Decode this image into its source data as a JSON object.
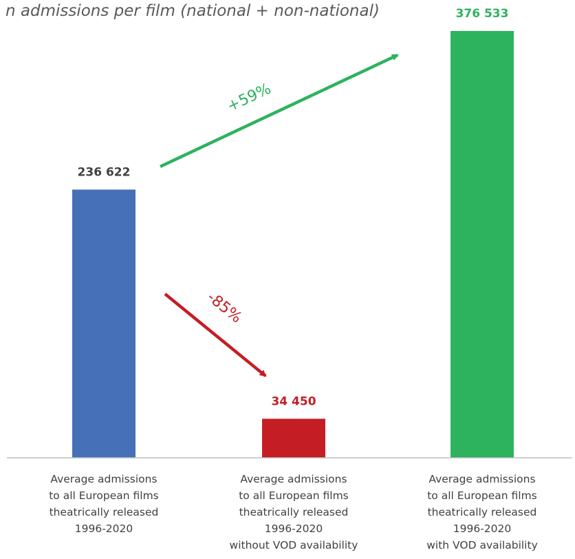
{
  "chart_data": {
    "type": "bar",
    "title": "n admissions per film (national + non-national)",
    "categories": [
      [
        "Average admissions",
        "to all European films",
        "theatrically released",
        "1996-2020"
      ],
      [
        "Average admissions",
        "to all European films",
        "theatrically released",
        "1996-2020",
        "without VOD availability"
      ],
      [
        "Average admissions",
        "to all European films",
        "theatrically released",
        "1996-2020",
        "with VOD availability"
      ]
    ],
    "values": [
      236622,
      34450,
      376533
    ],
    "value_labels": [
      "236 622",
      "34 450",
      "376 533"
    ],
    "colors": [
      "#4670b8",
      "#c41e24",
      "#2db35d"
    ],
    "ylim": [
      0,
      376533
    ],
    "grid": false,
    "legend": "none",
    "annotations": [
      {
        "text": "+59%",
        "from": 0,
        "to": 2,
        "color": "#2db35d"
      },
      {
        "text": "-85%",
        "from": 0,
        "to": 1,
        "color": "#c41e24"
      }
    ]
  }
}
